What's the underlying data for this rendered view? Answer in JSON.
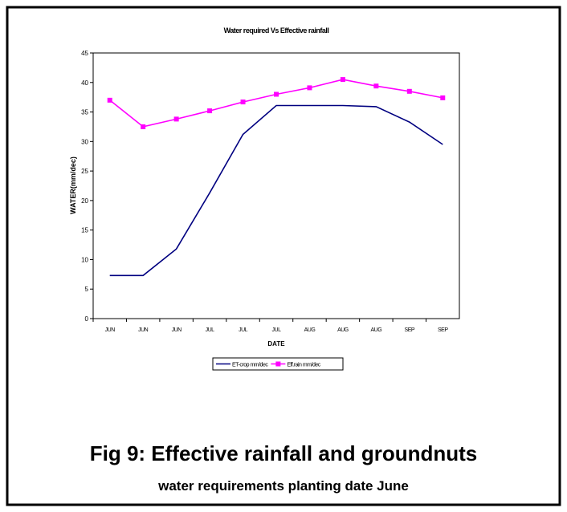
{
  "chart_data": {
    "type": "line",
    "title": "Water required Vs Effective rainfall",
    "x_label": "DATE",
    "y_label": "WATER(mm/dec)",
    "categories": [
      "JUN",
      "JUN",
      "JUN",
      "JUL",
      "JUL",
      "JUL",
      "AUG",
      "AUG",
      "AUG",
      "SEP",
      "SEP"
    ],
    "series": [
      {
        "name": "ET-crop mm/dec",
        "color": "#000080",
        "marker": false,
        "values": [
          7.3,
          7.3,
          11.8,
          21.3,
          31.2,
          36.1,
          36.1,
          36.1,
          35.9,
          33.3,
          29.5
        ]
      },
      {
        "name": "Eff.rain mm/dec",
        "color": "#ff00ff",
        "marker": true,
        "values": [
          37.0,
          32.5,
          33.8,
          35.2,
          36.7,
          38.0,
          39.1,
          40.5,
          39.4,
          38.5,
          37.4
        ]
      }
    ],
    "ylim": [
      0,
      45
    ],
    "yticks": [
      0,
      5,
      10,
      15,
      20,
      25,
      30,
      35,
      40,
      45
    ],
    "grid": false,
    "legend": "bottom"
  },
  "caption": {
    "title": "Fig 9: Effective rainfall and groundnuts",
    "subtitle": "water requirements planting date June"
  }
}
